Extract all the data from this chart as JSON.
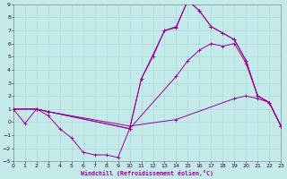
{
  "xlabel": "Windchill (Refroidissement éolien,°C)",
  "xlim": [
    0,
    23
  ],
  "ylim": [
    -3,
    9
  ],
  "xticks": [
    0,
    1,
    2,
    3,
    4,
    5,
    6,
    7,
    8,
    9,
    10,
    11,
    12,
    13,
    14,
    15,
    16,
    17,
    18,
    19,
    20,
    21,
    22,
    23
  ],
  "yticks": [
    -3,
    -2,
    -1,
    0,
    1,
    2,
    3,
    4,
    5,
    6,
    7,
    8,
    9
  ],
  "background_color": "#c5eaea",
  "grid_color": "#a8d4d4",
  "line_color": "#990099",
  "line1_x": [
    0,
    1,
    2,
    3,
    4,
    5,
    6,
    7,
    8,
    9,
    10,
    11,
    12,
    13,
    14,
    15,
    16,
    17,
    18,
    19,
    20,
    21,
    22,
    23
  ],
  "line1_y": [
    1,
    -0.1,
    1,
    0.5,
    -0.5,
    -1.2,
    -2.3,
    -2.5,
    -2.5,
    -2.7,
    -0.5,
    3.3,
    5.0,
    7.0,
    7.2,
    9.3,
    8.5,
    7.3,
    6.8,
    6.3,
    4.7,
    2.0,
    1.5,
    -0.3
  ],
  "line2_x": [
    0,
    2,
    3,
    10,
    11,
    13,
    14,
    15,
    16,
    17,
    18,
    19,
    20,
    21,
    22,
    23
  ],
  "line2_y": [
    1,
    1,
    0.8,
    -0.5,
    3.3,
    7.0,
    7.3,
    9.3,
    8.5,
    7.3,
    6.8,
    6.3,
    4.7,
    2.0,
    1.5,
    -0.3
  ],
  "line3_x": [
    0,
    2,
    3,
    10,
    14,
    15,
    16,
    17,
    18,
    19,
    20,
    21,
    22,
    23
  ],
  "line3_y": [
    1,
    1,
    0.8,
    -0.5,
    3.5,
    4.7,
    5.5,
    6.0,
    5.8,
    6.0,
    4.5,
    2.0,
    1.5,
    -0.3
  ],
  "line4_x": [
    0,
    2,
    3,
    10,
    14,
    19,
    20,
    21,
    22,
    23
  ],
  "line4_y": [
    1,
    1,
    0.8,
    -0.3,
    0.2,
    1.8,
    2.0,
    1.8,
    1.5,
    -0.3
  ]
}
